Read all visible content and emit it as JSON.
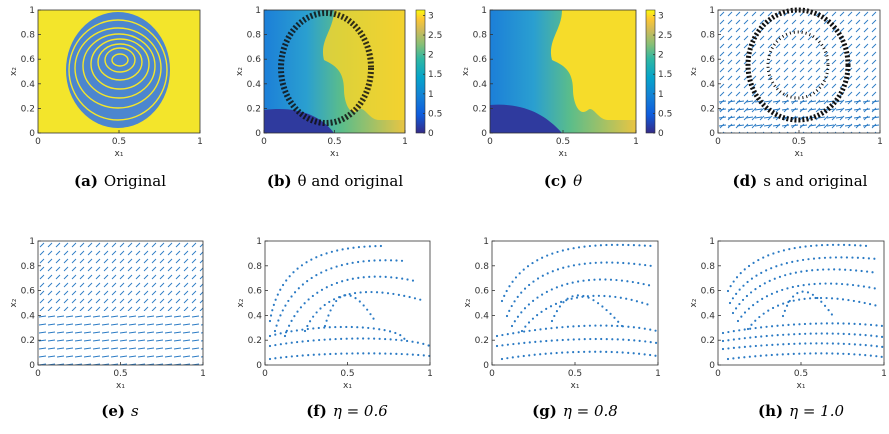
{
  "figure": {
    "panels": [
      {
        "label": "(a)",
        "caption": "Original",
        "xlabel": "x₁",
        "ylabel": "x₂",
        "xlim": [
          0,
          1
        ],
        "ylim": [
          0,
          1
        ],
        "xticks": [
          0,
          0.5,
          1
        ],
        "yticks": [
          0,
          0.2,
          0.4,
          0.6,
          0.8,
          1
        ]
      },
      {
        "label": "(b)",
        "caption": "θ and original",
        "xlabel": "x₁",
        "ylabel": "x₂",
        "xlim": [
          0,
          1
        ],
        "ylim": [
          0,
          1
        ],
        "xticks": [
          0,
          0.5,
          1
        ],
        "yticks": [
          0,
          0.2,
          0.4,
          0.6,
          0.8,
          1
        ],
        "colorbar": {
          "lim": [
            0,
            3.14
          ],
          "ticks": [
            0,
            0.5,
            1,
            1.5,
            2,
            2.5,
            3
          ]
        }
      },
      {
        "label": "(c)",
        "caption": "θ",
        "xlabel": "x₁",
        "ylabel": "x₂",
        "xlim": [
          0,
          1
        ],
        "ylim": [
          0,
          1
        ],
        "xticks": [
          0,
          0.5,
          1
        ],
        "yticks": [
          0,
          0.2,
          0.4,
          0.6,
          0.8,
          1
        ],
        "colorbar": {
          "lim": [
            0,
            3.14
          ],
          "ticks": [
            0,
            0.5,
            1,
            1.5,
            2,
            2.5,
            3
          ]
        }
      },
      {
        "label": "(d)",
        "caption": "s and original",
        "xlabel": "x₁",
        "ylabel": "x₂",
        "xlim": [
          0,
          1
        ],
        "ylim": [
          0,
          1
        ],
        "xticks": [
          0,
          0.5,
          1
        ],
        "yticks": [
          0,
          0.2,
          0.4,
          0.6,
          0.8,
          1
        ]
      },
      {
        "label": "(e)",
        "caption": "s",
        "xlabel": "x₁",
        "ylabel": "x₂",
        "xlim": [
          0,
          1
        ],
        "ylim": [
          0,
          1
        ],
        "xticks": [
          0,
          0.5,
          1
        ],
        "yticks": [
          0,
          0.2,
          0.4,
          0.6,
          0.8,
          1
        ]
      },
      {
        "label": "(f)",
        "caption": "η = 0.6",
        "xlabel": "x₁",
        "ylabel": "x₂",
        "xlim": [
          0,
          1
        ],
        "ylim": [
          0,
          1
        ],
        "xticks": [
          0,
          0.5,
          1
        ],
        "yticks": [
          0,
          0.2,
          0.4,
          0.6,
          0.8,
          1
        ]
      },
      {
        "label": "(g)",
        "caption": "η = 0.8",
        "xlabel": "x₁",
        "ylabel": "x₂",
        "xlim": [
          0,
          1
        ],
        "ylim": [
          0,
          1
        ],
        "xticks": [
          0,
          0.5,
          1
        ],
        "yticks": [
          0,
          0.2,
          0.4,
          0.6,
          0.8,
          1
        ]
      },
      {
        "label": "(h)",
        "caption": "η = 1.0",
        "xlabel": "x₁",
        "ylabel": "x₂",
        "xlim": [
          0,
          1
        ],
        "ylim": [
          0,
          1
        ],
        "xticks": [
          0,
          0.5,
          1
        ],
        "yticks": [
          0,
          0.2,
          0.4,
          0.6,
          0.8,
          1
        ]
      }
    ]
  }
}
